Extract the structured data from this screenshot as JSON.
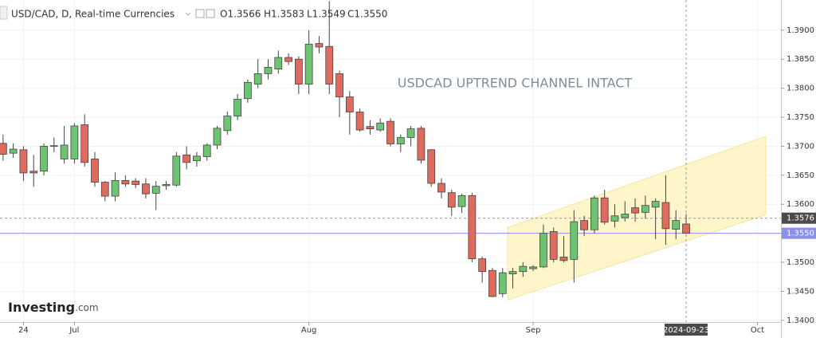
{
  "chart_data": {
    "type": "candlestick",
    "title": "USD/CAD, D, Real-time Currencies",
    "ohlc_legend": [
      "O1.3566",
      "H1.3583",
      "L1.3549",
      "C1.3550"
    ],
    "annotation": "USDCAD UPTREND CHANNEL INTACT",
    "logo": {
      "brand": "Investing",
      "suffix": ".com"
    },
    "open": [
      1.3705,
      1.3688,
      1.3694,
      1.3657,
      1.3657,
      1.37,
      1.3678,
      1.3678,
      1.3737,
      1.3678,
      1.3638,
      1.3614,
      1.3641,
      1.364,
      1.3635,
      1.3619,
      1.3632,
      1.3633,
      1.3685,
      1.3675,
      1.3682,
      1.3702,
      1.3727,
      1.3752,
      1.3782,
      1.3807,
      1.3825,
      1.3833,
      1.3853,
      1.385,
      1.3807,
      1.3877,
      1.3872,
      1.3825,
      1.3785,
      1.3759,
      1.3734,
      1.3728,
      1.3743,
      1.3704,
      1.3715,
      1.3731,
      1.3694,
      1.3636,
      1.362,
      1.3596,
      1.3615,
      1.3506,
      1.3486,
      1.3446,
      1.348,
      1.3484,
      1.3489,
      1.3492,
      1.3553,
      1.3509,
      1.3505,
      1.3572,
      1.3556,
      1.3611,
      1.3571,
      1.3577,
      1.3594,
      1.3586,
      1.3595,
      1.3603,
      1.3557,
      1.3566
    ],
    "high": [
      1.372,
      1.3705,
      1.37,
      1.3685,
      1.3705,
      1.3715,
      1.3735,
      1.374,
      1.3755,
      1.369,
      1.364,
      1.3655,
      1.365,
      1.3645,
      1.3645,
      1.364,
      1.364,
      1.369,
      1.37,
      1.369,
      1.3705,
      1.3735,
      1.376,
      1.379,
      1.3815,
      1.385,
      1.385,
      1.3865,
      1.386,
      1.3855,
      1.39,
      1.389,
      1.395,
      1.383,
      1.3795,
      1.3765,
      1.3745,
      1.3748,
      1.3748,
      1.372,
      1.3735,
      1.3735,
      1.3695,
      1.3645,
      1.3625,
      1.3618,
      1.362,
      1.351,
      1.349,
      1.349,
      1.349,
      1.35,
      1.3495,
      1.3565,
      1.356,
      1.3545,
      1.359,
      1.358,
      1.3615,
      1.3625,
      1.36,
      1.3605,
      1.361,
      1.3615,
      1.361,
      1.365,
      1.359,
      1.3583
    ],
    "low": [
      1.3675,
      1.368,
      1.364,
      1.363,
      1.365,
      1.369,
      1.367,
      1.367,
      1.3665,
      1.363,
      1.3605,
      1.3605,
      1.363,
      1.3628,
      1.361,
      1.359,
      1.3625,
      1.363,
      1.366,
      1.3665,
      1.3675,
      1.3695,
      1.372,
      1.3745,
      1.3775,
      1.38,
      1.3815,
      1.3825,
      1.384,
      1.379,
      1.379,
      1.386,
      1.379,
      1.375,
      1.372,
      1.3725,
      1.372,
      1.3725,
      1.37,
      1.369,
      1.37,
      1.367,
      1.363,
      1.361,
      1.358,
      1.3585,
      1.35,
      1.3465,
      1.344,
      1.344,
      1.3455,
      1.3475,
      1.3485,
      1.349,
      1.35,
      1.35,
      1.3465,
      1.3545,
      1.355,
      1.3565,
      1.356,
      1.357,
      1.357,
      1.3575,
      1.354,
      1.353,
      1.354,
      1.3549
    ],
    "close": [
      1.3686,
      1.3695,
      1.3654,
      1.3654,
      1.37,
      1.3701,
      1.3702,
      1.3735,
      1.3672,
      1.3638,
      1.3614,
      1.3641,
      1.3635,
      1.3634,
      1.3618,
      1.3631,
      1.3634,
      1.3683,
      1.3672,
      1.3683,
      1.3702,
      1.3731,
      1.3752,
      1.3781,
      1.381,
      1.3825,
      1.3836,
      1.3853,
      1.3846,
      1.3807,
      1.3876,
      1.3871,
      1.3807,
      1.3785,
      1.3759,
      1.3728,
      1.373,
      1.374,
      1.3704,
      1.3715,
      1.373,
      1.3676,
      1.3636,
      1.3621,
      1.3595,
      1.3615,
      1.3506,
      1.3484,
      1.3441,
      1.3482,
      1.3484,
      1.3493,
      1.3492,
      1.355,
      1.3505,
      1.3503,
      1.357,
      1.3556,
      1.3611,
      1.3569,
      1.358,
      1.3583,
      1.3585,
      1.3598,
      1.3605,
      1.3558,
      1.3572,
      1.355
    ],
    "up_color": "#6cc472",
    "down_color": "#df6a5e",
    "xlim": [
      -0.3,
      76.3
    ],
    "xticks": [
      {
        "value": 2,
        "label": "24"
      },
      {
        "value": 7,
        "label": "Jul"
      },
      {
        "value": 30,
        "label": "Aug"
      },
      {
        "value": 52,
        "label": "Sep"
      },
      {
        "value": 74,
        "label": "Oct"
      }
    ],
    "ylim": [
      1.3397,
      1.3952
    ],
    "yticks": [
      {
        "value": 1.34,
        "label": "1.3400"
      },
      {
        "value": 1.345,
        "label": "1.3450"
      },
      {
        "value": 1.35,
        "label": "1.3500"
      },
      {
        "value": 1.355,
        "label": "1.3550"
      },
      {
        "value": 1.36,
        "label": "1.3600"
      },
      {
        "value": 1.365,
        "label": "1.3650"
      },
      {
        "value": 1.37,
        "label": "1.3700"
      },
      {
        "value": 1.375,
        "label": "1.3750"
      },
      {
        "value": 1.38,
        "label": "1.3800"
      },
      {
        "value": 1.385,
        "label": "1.3850"
      },
      {
        "value": 1.39,
        "label": "1.3900"
      }
    ],
    "grid": true,
    "channel": {
      "x": [
        49.5,
        74.8
      ],
      "upper": [
        1.356,
        1.3717
      ],
      "lower": [
        1.3435,
        1.3582
      ],
      "color": "#fff2b8"
    },
    "crosshair": {
      "x": {
        "value": 67,
        "label": "2024-09-23"
      },
      "y": 1.3576
    },
    "last_price": {
      "value": 1.355,
      "label": "1.3550",
      "color": "#8a8ff0"
    }
  }
}
